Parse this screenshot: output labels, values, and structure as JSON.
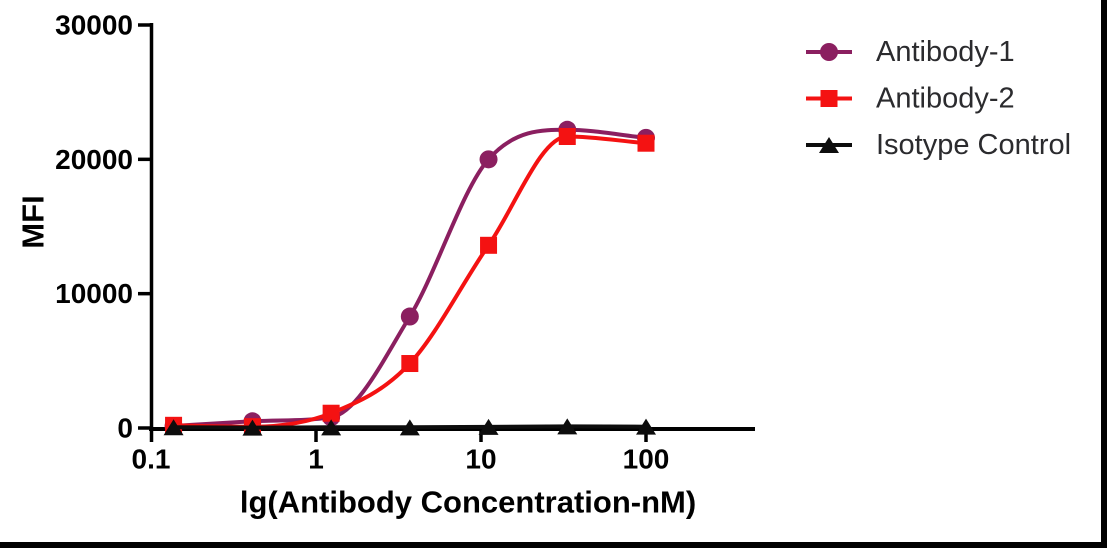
{
  "figure": {
    "background": "#ffffff",
    "frame": {
      "right_border_color": "#000000",
      "bottom_border_color": "#000000"
    }
  },
  "chart_data": {
    "type": "line",
    "title": "",
    "xlabel": "lg(Antibody Concentration-nM)",
    "ylabel": "MFI",
    "x_scale": "log10",
    "x_tick_labels": [
      "0.1",
      "1",
      "10",
      "100"
    ],
    "x_tick_values": [
      0.1,
      1,
      10,
      100
    ],
    "xlim_log10": [
      -1,
      2.66
    ],
    "y_tick_labels": [
      "0",
      "10000",
      "20000",
      "30000"
    ],
    "y_tick_values": [
      0,
      10000,
      20000,
      30000
    ],
    "ylim": [
      0,
      30000
    ],
    "grid": false,
    "axis_color": "#000000",
    "x": [
      0.137,
      0.412,
      1.235,
      3.704,
      11.11,
      33.33,
      100
    ],
    "series": [
      {
        "name": "Antibody-1",
        "color": "#8B1F60",
        "marker": "circle",
        "values": [
          150,
          500,
          800,
          8300,
          20000,
          22200,
          21600
        ]
      },
      {
        "name": "Antibody-2",
        "color": "#F41212",
        "marker": "square",
        "values": [
          200,
          100,
          1100,
          4800,
          13600,
          21700,
          21200
        ]
      },
      {
        "name": "Isotype Control",
        "color": "#0d0d0d",
        "marker": "triangle",
        "values": [
          60,
          30,
          50,
          50,
          80,
          120,
          100
        ]
      }
    ],
    "legend": {
      "position": "top-right",
      "text_color": "#2b2b2e",
      "entries": [
        "Antibody-1",
        "Antibody-2",
        "Isotype Control"
      ]
    }
  }
}
